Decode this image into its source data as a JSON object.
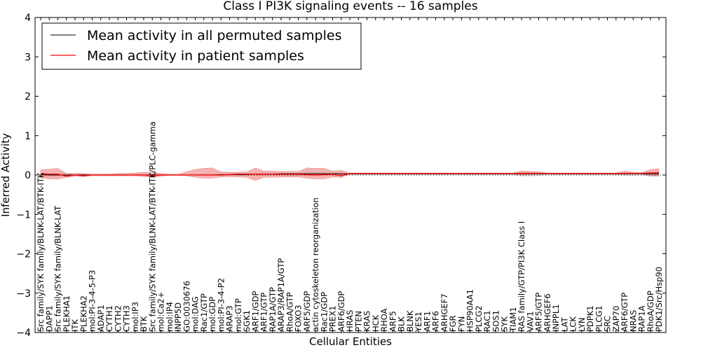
{
  "chart_data": {
    "type": "line",
    "title": "Class I PI3K signaling events -- 16 samples",
    "xlabel": "Cellular Entities",
    "ylabel": "Inferred Activity",
    "ylim": [
      -4,
      4
    ],
    "yticks": [
      -4,
      -3,
      -2,
      -1,
      0,
      1,
      2,
      3,
      4
    ],
    "zero_line": "dotted",
    "legend_position": "top-left",
    "colors": {
      "permuted_line": "#000000",
      "patient_line": "#ff0000",
      "patient_band": "#f08080",
      "permuted_band": "#b0b0b0"
    },
    "categories": [
      "Src family/SYK family/BLNK-LAT/BTK-ITK",
      "DAPP1",
      "Src family/SYK family/BLNK-LAT",
      "PLEKHA1",
      "ITK",
      "PLEKHA2",
      "mol:PI-3-4-5-P3",
      "ADAP1",
      "CYTH1",
      "CYTH2",
      "CYTH3",
      "mol:IP3",
      "BTK",
      "Src family/SYK family/BLNK-LAT/BTK-ITK/PLC-gamma",
      "mol:Ca2+",
      "mol:IP4",
      "INPP5D",
      "GO:0030676",
      "mol:DAG",
      "Rac1/GTP",
      "mol:GDP",
      "mol:PI-3-4-P2",
      "ARAP3",
      "mol:GTP",
      "SGK1",
      "ARF1/GDP",
      "ARF1/GTP",
      "RAP1A/GTP",
      "ARAP3/RAP1A/GTP",
      "RhoA/GTP",
      "FOXO3",
      "ARF5/GDP",
      "actin cytoskeleton reorganization",
      "Rac1/GDP",
      "PREX1",
      "ARF6/GDP",
      "HRAS",
      "PTEN",
      "KRAS",
      "HCK",
      "RHOA",
      "ARF5",
      "BLK",
      "BLNK",
      "YES1",
      "ARF1",
      "ARF6",
      "ARHGEF7",
      "FGR",
      "FYN",
      "HSP90AA1",
      "PLCG2",
      "RAC1",
      "SOS1",
      "SYK",
      "TIAM1",
      "RAS family/GTP/PI3K Class I",
      "VAV1",
      "ARF5/GTP",
      "ARHGEF6",
      "INPPL1",
      "LAT",
      "LCK",
      "LYN",
      "PDPK1",
      "PLCG1",
      "SRC",
      "ZAP70",
      "ARF6/GTP",
      "NRAS",
      "RAP1A",
      "RhoA/GDP",
      "PDK1/Src/Hsp90"
    ],
    "series": [
      {
        "name": "Mean activity in all permuted samples",
        "values": [
          0.01,
          0.0,
          0.0,
          0.0,
          0.0,
          0.0,
          0.0,
          0.0,
          0.0,
          0.0,
          0.0,
          0.0,
          0.0,
          0.0,
          0.0,
          0.0,
          0.0,
          0.0,
          0.0,
          0.0,
          0.0,
          0.01,
          0.01,
          0.01,
          0.01,
          0.02,
          0.02,
          0.02,
          0.03,
          0.03,
          0.03,
          0.03,
          0.03,
          0.03,
          0.03,
          0.03,
          0.03,
          0.03,
          0.03,
          0.03,
          0.03,
          0.03,
          0.03,
          0.03,
          0.03,
          0.03,
          0.03,
          0.03,
          0.03,
          0.03,
          0.03,
          0.03,
          0.03,
          0.03,
          0.03,
          0.03,
          0.03,
          0.03,
          0.03,
          0.03,
          0.03,
          0.03,
          0.03,
          0.03,
          0.03,
          0.03,
          0.03,
          0.03,
          0.03,
          0.03,
          0.03,
          0.03,
          0.03
        ],
        "band_lower": [
          -0.05,
          -0.04,
          -0.04,
          -0.03,
          -0.03,
          -0.03,
          -0.02,
          -0.02,
          -0.02,
          -0.02,
          -0.02,
          -0.02,
          -0.02,
          -0.02,
          -0.02,
          -0.01,
          -0.01,
          -0.01,
          -0.01,
          -0.02,
          -0.02,
          -0.02,
          -0.02,
          -0.02,
          -0.02,
          -0.02,
          -0.02,
          -0.02,
          -0.02,
          -0.02,
          -0.02,
          -0.03,
          -0.03,
          -0.02,
          -0.02,
          -0.02,
          -0.01,
          -0.01,
          -0.01,
          -0.01,
          -0.01,
          -0.01,
          -0.01,
          -0.01,
          -0.01,
          -0.01,
          -0.01,
          -0.01,
          -0.01,
          -0.01,
          -0.01,
          -0.01,
          -0.01,
          -0.01,
          -0.01,
          -0.01,
          -0.03,
          -0.03,
          -0.02,
          -0.01,
          -0.01,
          -0.01,
          -0.01,
          -0.01,
          -0.01,
          -0.01,
          -0.01,
          -0.01,
          -0.02,
          -0.02,
          -0.01,
          -0.04,
          -0.04
        ],
        "band_upper": [
          0.06,
          0.05,
          0.05,
          0.04,
          0.04,
          0.04,
          0.03,
          0.03,
          0.03,
          0.03,
          0.03,
          0.03,
          0.03,
          0.03,
          0.03,
          0.02,
          0.02,
          0.02,
          0.03,
          0.04,
          0.04,
          0.05,
          0.05,
          0.05,
          0.05,
          0.06,
          0.06,
          0.06,
          0.06,
          0.06,
          0.06,
          0.07,
          0.07,
          0.07,
          0.07,
          0.06,
          0.05,
          0.05,
          0.05,
          0.05,
          0.05,
          0.05,
          0.05,
          0.05,
          0.05,
          0.05,
          0.05,
          0.05,
          0.05,
          0.05,
          0.05,
          0.05,
          0.05,
          0.05,
          0.05,
          0.05,
          0.07,
          0.07,
          0.06,
          0.05,
          0.05,
          0.05,
          0.05,
          0.05,
          0.05,
          0.05,
          0.05,
          0.05,
          0.06,
          0.06,
          0.05,
          0.08,
          0.08
        ]
      },
      {
        "name": "Mean activity in patient samples",
        "values": [
          0.03,
          0.02,
          0.02,
          -0.03,
          0.0,
          -0.02,
          0.0,
          0.0,
          0.0,
          0.0,
          0.0,
          0.0,
          0.0,
          -0.02,
          0.0,
          0.0,
          0.0,
          0.0,
          0.0,
          0.0,
          0.0,
          0.0,
          0.01,
          0.02,
          0.02,
          0.02,
          0.02,
          0.02,
          0.02,
          0.02,
          0.02,
          0.01,
          0.0,
          0.01,
          0.02,
          -0.02,
          0.04,
          0.04,
          0.04,
          0.04,
          0.04,
          0.04,
          0.04,
          0.04,
          0.04,
          0.04,
          0.04,
          0.04,
          0.04,
          0.04,
          0.04,
          0.04,
          0.04,
          0.04,
          0.04,
          0.04,
          0.04,
          0.04,
          0.04,
          0.04,
          0.04,
          0.04,
          0.04,
          0.04,
          0.04,
          0.04,
          0.04,
          0.04,
          0.04,
          0.04,
          0.04,
          0.05,
          0.06
        ],
        "band_lower": [
          -0.07,
          -0.1,
          -0.1,
          -0.06,
          -0.03,
          -0.04,
          -0.02,
          -0.02,
          -0.02,
          -0.02,
          -0.02,
          -0.02,
          -0.04,
          -0.06,
          -0.03,
          -0.01,
          -0.01,
          -0.02,
          -0.06,
          -0.08,
          -0.08,
          -0.05,
          -0.04,
          -0.05,
          -0.06,
          -0.14,
          -0.06,
          -0.06,
          -0.05,
          -0.05,
          -0.05,
          -0.08,
          -0.1,
          -0.1,
          -0.05,
          -0.06,
          0.02,
          0.03,
          0.03,
          0.03,
          0.03,
          0.03,
          0.03,
          0.03,
          0.03,
          0.03,
          0.03,
          0.03,
          0.03,
          0.03,
          0.03,
          0.03,
          0.03,
          0.03,
          0.03,
          0.03,
          0.0,
          0.02,
          0.02,
          0.03,
          0.03,
          0.03,
          0.03,
          0.03,
          0.03,
          0.03,
          0.03,
          0.03,
          0.02,
          0.03,
          0.03,
          -0.02,
          -0.02
        ],
        "band_upper": [
          0.13,
          0.15,
          0.17,
          0.04,
          0.04,
          0.04,
          0.02,
          0.02,
          0.02,
          0.04,
          0.04,
          0.05,
          0.07,
          0.06,
          0.04,
          0.02,
          0.02,
          0.08,
          0.14,
          0.17,
          0.18,
          0.08,
          0.07,
          0.07,
          0.08,
          0.18,
          0.1,
          0.1,
          0.09,
          0.09,
          0.09,
          0.18,
          0.17,
          0.17,
          0.1,
          0.12,
          0.05,
          0.05,
          0.05,
          0.05,
          0.05,
          0.05,
          0.05,
          0.05,
          0.05,
          0.05,
          0.05,
          0.05,
          0.05,
          0.05,
          0.05,
          0.05,
          0.05,
          0.05,
          0.05,
          0.05,
          0.1,
          0.09,
          0.08,
          0.05,
          0.05,
          0.05,
          0.05,
          0.05,
          0.05,
          0.05,
          0.05,
          0.05,
          0.1,
          0.07,
          0.06,
          0.14,
          0.16
        ]
      }
    ]
  }
}
